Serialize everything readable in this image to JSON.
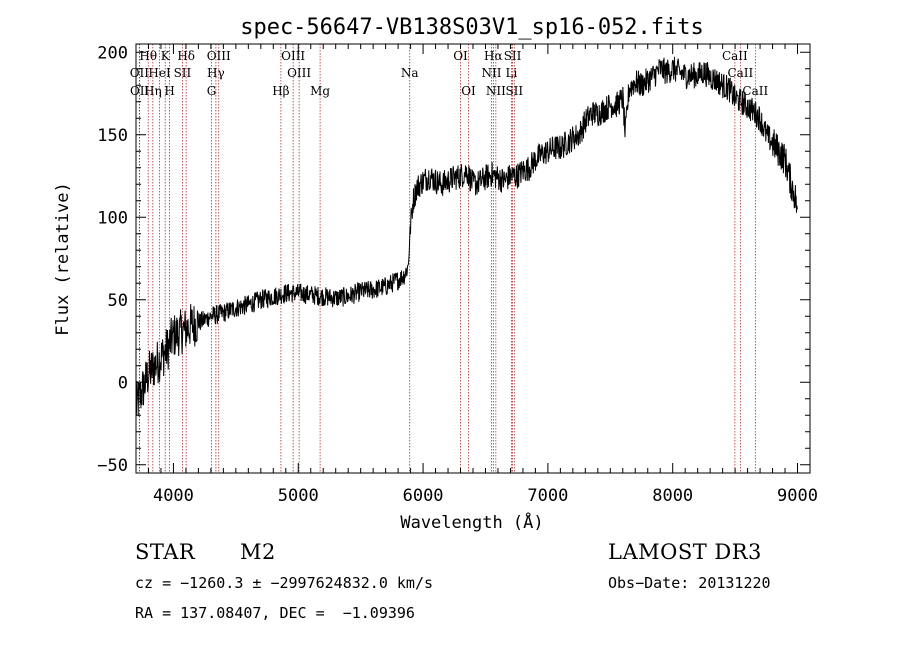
{
  "chart_data": {
    "type": "line",
    "title": "spec-56647-VB138S03V1_sp16-052.fits",
    "xlabel": "Wavelength (Å)",
    "ylabel": "Flux (relative)",
    "xlim": [
      3700,
      9100
    ],
    "ylim": [
      -55,
      205
    ],
    "x_ticks": [
      4000,
      5000,
      6000,
      7000,
      8000,
      9000
    ],
    "y_ticks": [
      -50,
      0,
      50,
      100,
      150,
      200
    ],
    "grid": false,
    "series": [
      {
        "x": [
          3700,
          3750,
          3800,
          3850,
          3900,
          3950,
          4000,
          4050,
          4100,
          4150,
          4200,
          4300,
          4400,
          4500,
          4600,
          4700,
          4800,
          4850,
          4900,
          5000,
          5100,
          5200,
          5300,
          5400,
          5500,
          5600,
          5700,
          5800,
          5850,
          5880,
          5900,
          5920,
          5950,
          6000,
          6050,
          6100,
          6150,
          6200,
          6250,
          6300,
          6350,
          6400,
          6450,
          6500,
          6550,
          6600,
          6650,
          6700,
          6750,
          6800,
          6850,
          6900,
          6950,
          7000,
          7050,
          7100,
          7150,
          7200,
          7250,
          7300,
          7350,
          7400,
          7450,
          7500,
          7550,
          7600,
          7620,
          7650,
          7700,
          7750,
          7800,
          7850,
          7900,
          7950,
          8000,
          8050,
          8100,
          8150,
          8200,
          8250,
          8300,
          8350,
          8400,
          8450,
          8500,
          8550,
          8600,
          8650,
          8700,
          8750,
          8800,
          8850,
          8900,
          8950,
          8970,
          8990,
          9000
        ],
        "y": [
          -15,
          -5,
          5,
          10,
          15,
          20,
          28,
          30,
          32,
          35,
          36,
          40,
          42,
          45,
          47,
          50,
          52,
          53,
          54,
          54,
          53,
          52,
          51,
          52,
          55,
          56,
          58,
          62,
          65,
          70,
          95,
          110,
          118,
          122,
          125,
          122,
          120,
          122,
          124,
          125,
          128,
          120,
          121,
          124,
          126,
          124,
          122,
          125,
          125,
          128,
          130,
          135,
          138,
          140,
          142,
          142,
          145,
          148,
          150,
          158,
          163,
          163,
          165,
          168,
          168,
          172,
          150,
          178,
          182,
          180,
          183,
          186,
          190,
          188,
          190,
          188,
          186,
          186,
          186,
          188,
          185,
          183,
          180,
          178,
          172,
          170,
          167,
          164,
          160,
          150,
          145,
          140,
          135,
          120,
          115,
          110,
          95
        ]
      }
    ],
    "spectral_lines": [
      {
        "label": "Hθ",
        "x": 3798,
        "row": 0
      },
      {
        "label": "K",
        "x": 3934,
        "row": 0
      },
      {
        "label": "Hδ",
        "x": 4102,
        "row": 0
      },
      {
        "label": "OIII",
        "x": 4363,
        "row": 0
      },
      {
        "label": "OIII",
        "x": 4959,
        "row": 0
      },
      {
        "label": "OI",
        "x": 6300,
        "row": 0
      },
      {
        "label": "Hα",
        "x": 6563,
        "row": 0
      },
      {
        "label": "SII",
        "x": 6717,
        "row": 0
      },
      {
        "label": "CaII",
        "x": 8498,
        "row": 0
      },
      {
        "label": "OII",
        "x": 3727,
        "row": 1
      },
      {
        "label": "HeI",
        "x": 3889,
        "row": 1
      },
      {
        "label": "SII",
        "x": 4072,
        "row": 1
      },
      {
        "label": "Hγ",
        "x": 4340,
        "row": 1
      },
      {
        "label": "OIII",
        "x": 5007,
        "row": 1
      },
      {
        "label": "Na",
        "x": 5893,
        "row": 1
      },
      {
        "label": "NII",
        "x": 6548,
        "row": 1
      },
      {
        "label": "Li",
        "x": 6708,
        "row": 1
      },
      {
        "label": "CaII",
        "x": 8542,
        "row": 1
      },
      {
        "label": "OII",
        "x": 3729,
        "row": 2
      },
      {
        "label": "Hη",
        "x": 3835,
        "row": 2
      },
      {
        "label": "H",
        "x": 3969,
        "row": 2
      },
      {
        "label": "G",
        "x": 4305,
        "row": 2
      },
      {
        "label": "Hβ",
        "x": 4861,
        "row": 2
      },
      {
        "label": "Mg",
        "x": 5175,
        "row": 2
      },
      {
        "label": "OI",
        "x": 6364,
        "row": 2
      },
      {
        "label": "NII",
        "x": 6583,
        "row": 2
      },
      {
        "label": "SII",
        "x": 6731,
        "row": 2
      },
      {
        "label": "CaII",
        "x": 8662,
        "row": 2
      }
    ]
  },
  "info": {
    "object_type": "STAR",
    "subclass": "M2",
    "survey": "LAMOST DR3",
    "cz_line": "cz = −1260.3 ± −2997624832.0 km/s",
    "obs_date": "Obs−Date: 20131220",
    "radec_line": "RA = 137.08407, DEC =  −1.09396"
  },
  "colors": {
    "spectrum": "#000000",
    "line_markers": "#b03030",
    "axes": "#000000"
  }
}
